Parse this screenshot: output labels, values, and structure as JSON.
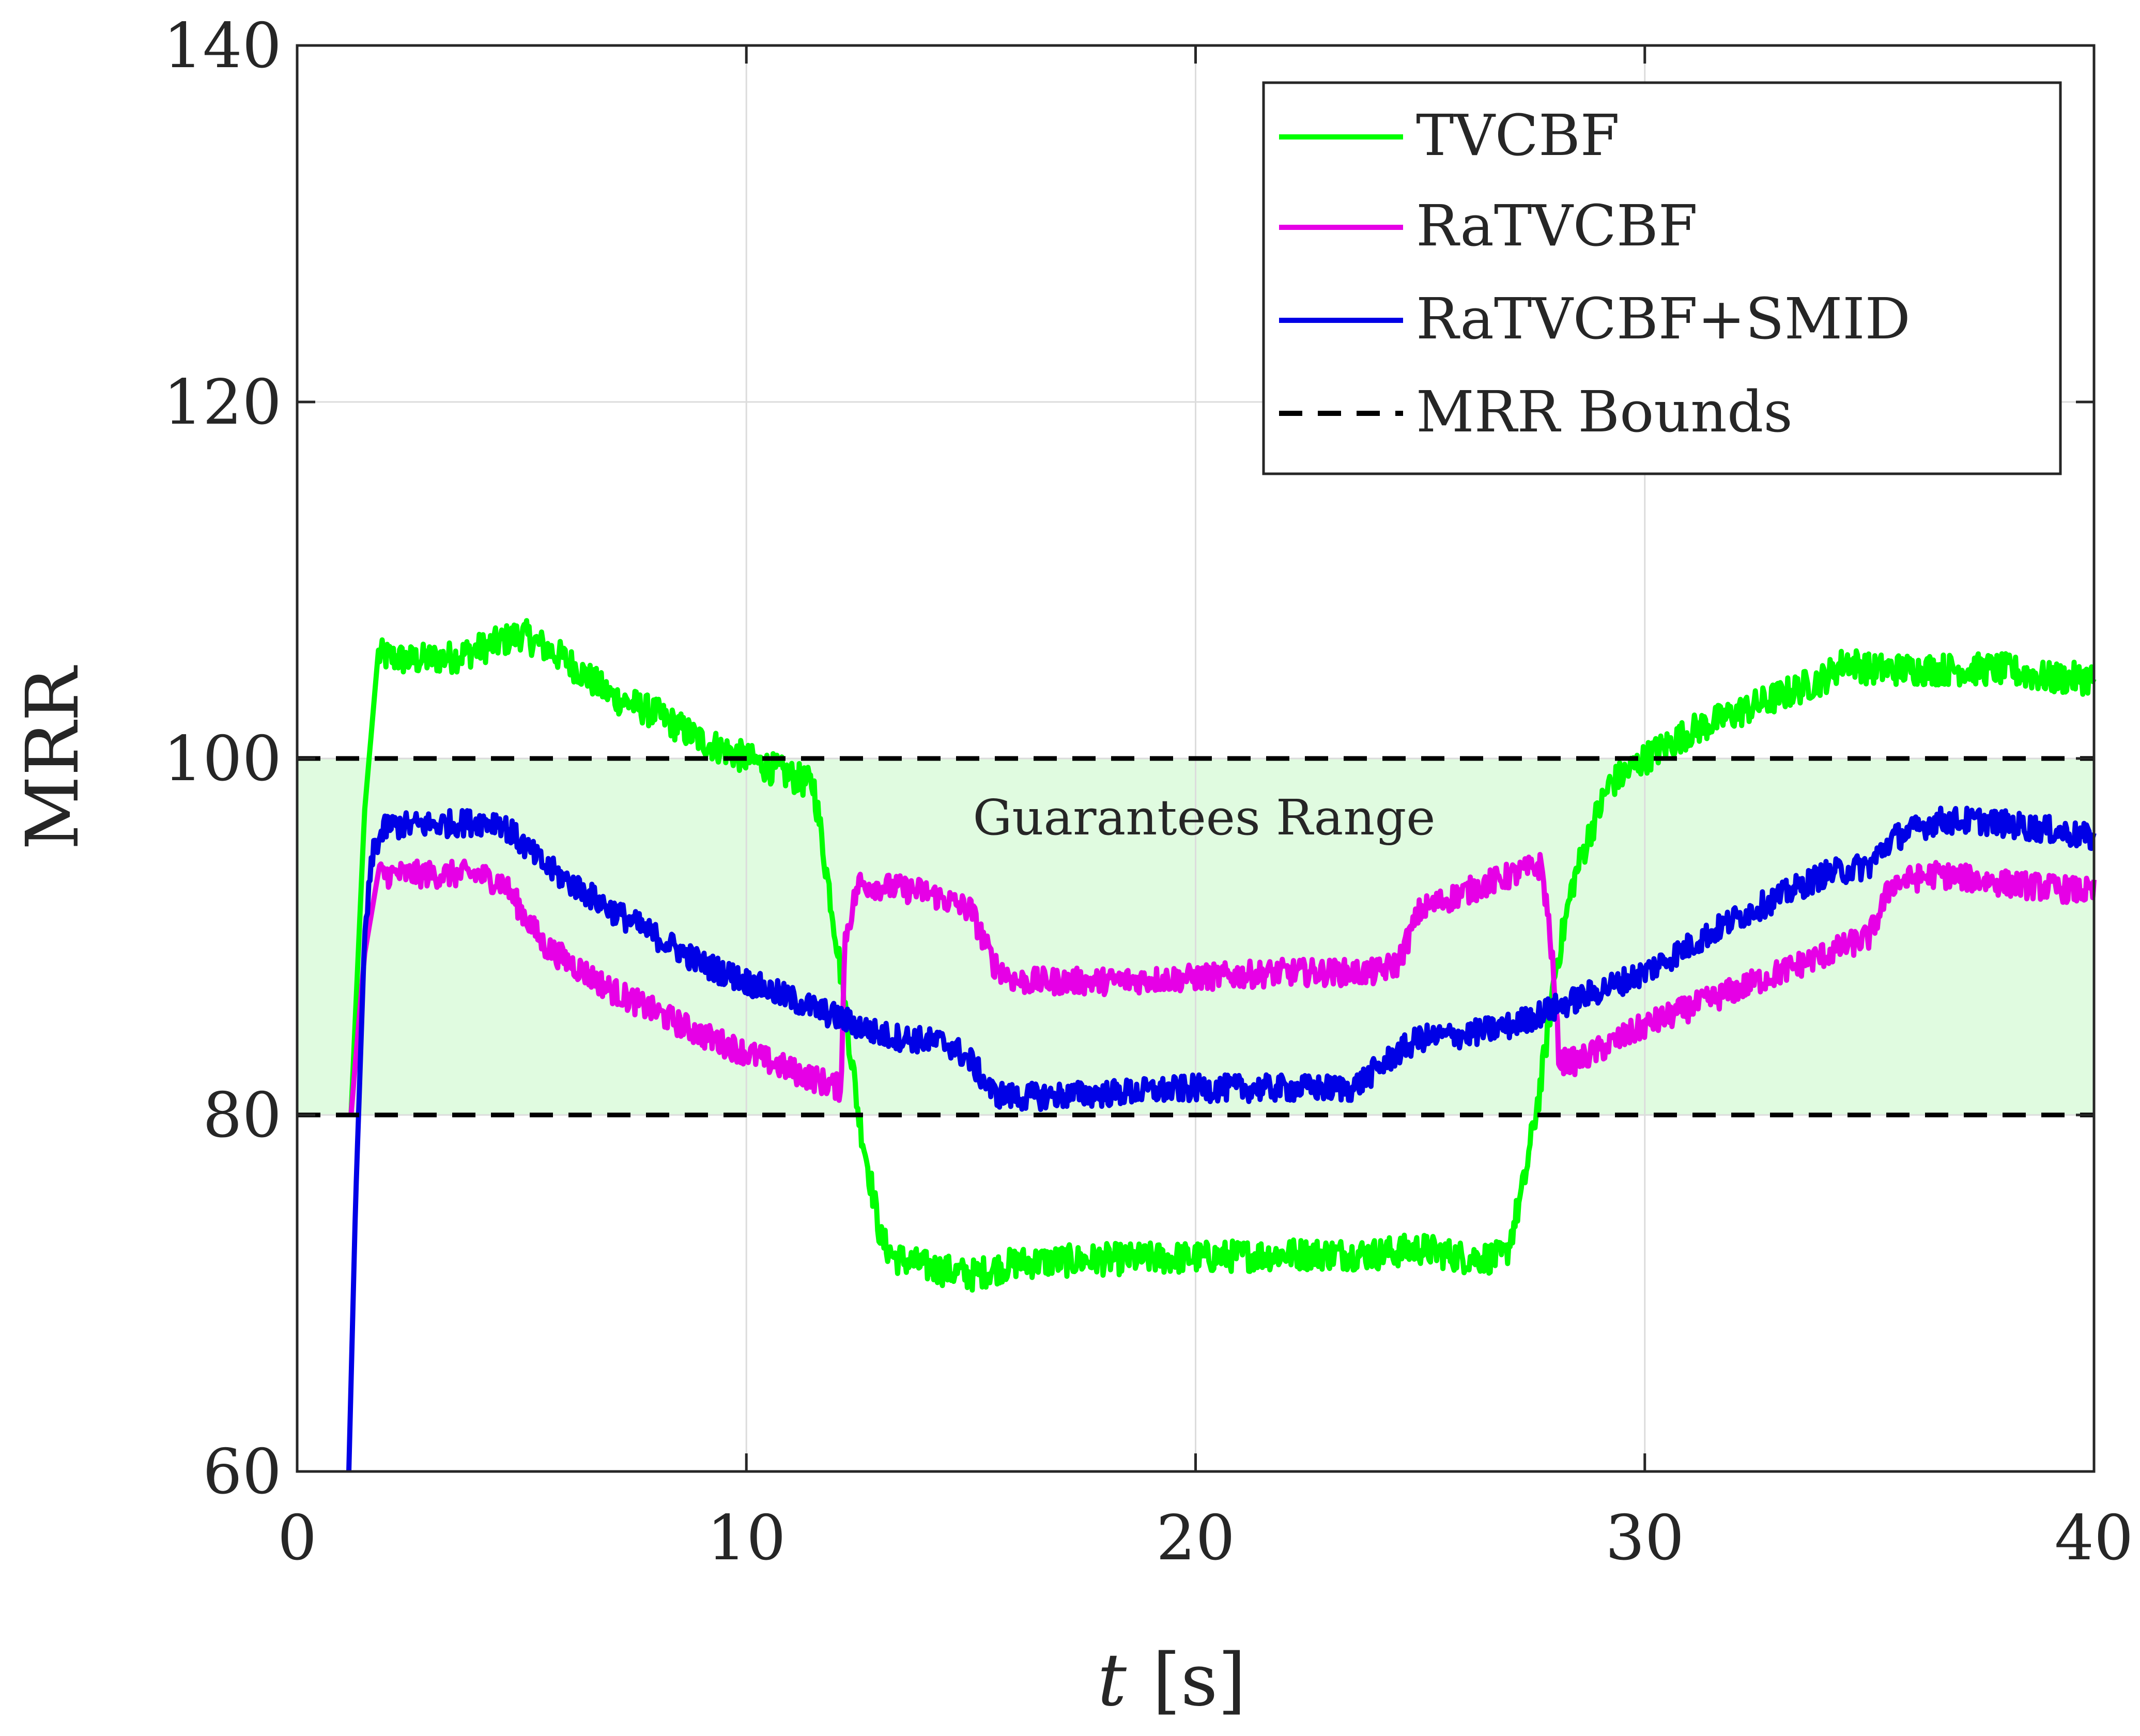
{
  "chart_data": {
    "type": "line",
    "xlabel_var": "t",
    "xlabel_unit": "[s]",
    "ylabel": "MRR",
    "xlim": [
      0,
      40
    ],
    "ylim": [
      60,
      140
    ],
    "xticks": [
      0,
      10,
      20,
      30,
      40
    ],
    "yticks": [
      60,
      80,
      100,
      120,
      140
    ],
    "grid": true,
    "legend_position": "top-right",
    "band": {
      "low": 80,
      "high": 100,
      "label": "Guarantees Range",
      "color": "#e0fbe0"
    },
    "series": [
      {
        "name": "TVCBF",
        "color": "#00ff00",
        "style": "solid",
        "x": [
          1.2,
          1.5,
          1.8,
          2.5,
          3.5,
          4.5,
          5.0,
          6.0,
          7.0,
          8.0,
          9.0,
          10.0,
          11.0,
          11.5,
          12.0,
          12.5,
          13.0,
          13.3,
          14.0,
          15.0,
          16.0,
          18.0,
          20.0,
          22.0,
          24.0,
          25.0,
          26.0,
          26.9,
          27.3,
          27.7,
          28.0,
          28.4,
          28.8,
          29.2,
          30.0,
          31.0,
          32.0,
          33.0,
          34.0,
          34.5,
          35.0,
          36.0,
          37.0,
          38.0,
          39.0,
          40.0
        ],
        "y": [
          80,
          97,
          105.8,
          105.5,
          105.7,
          106.5,
          107,
          105.5,
          103.5,
          102.5,
          101,
          100,
          99,
          98.5,
          90,
          80,
          73,
          72,
          71.5,
          71,
          71.7,
          71.9,
          72,
          72.2,
          72.2,
          72.5,
          72,
          72,
          76,
          82,
          88,
          93,
          96,
          98.5,
          100,
          101.5,
          102.5,
          103.5,
          104.5,
          105.5,
          105,
          105,
          105,
          105,
          104.5,
          104.5
        ]
      },
      {
        "name": "RaTVCBF",
        "color": "#e600e6",
        "style": "solid",
        "x": [
          1.2,
          1.5,
          1.8,
          3.0,
          4.0,
          4.6,
          5.5,
          7.0,
          9.0,
          11.0,
          12.1,
          12.2,
          12.5,
          14.0,
          15.0,
          15.5,
          16.0,
          18.0,
          20.0,
          22.0,
          24.0,
          24.5,
          25.0,
          26.5,
          27.7,
          27.9,
          28.1,
          28.5,
          30.0,
          32.0,
          34.0,
          35.0,
          35.5,
          36.5,
          38.0,
          40.0
        ],
        "y": [
          80,
          89,
          93.5,
          93.5,
          93.5,
          93,
          89.5,
          87,
          84.5,
          82.5,
          81.5,
          90,
          93,
          92.5,
          91.5,
          88.5,
          87.5,
          87.5,
          87.7,
          88,
          88,
          88.5,
          91.5,
          93,
          94,
          90,
          83,
          83,
          85,
          87,
          89,
          90,
          93,
          93.5,
          93,
          92.5
        ]
      },
      {
        "name": "RaTVCBF+SMID",
        "color": "#0000e6",
        "style": "solid",
        "x": [
          1.15,
          1.3,
          1.5,
          1.7,
          2.0,
          3.0,
          4.5,
          5.5,
          7.0,
          9.0,
          11.0,
          12.0,
          13.0,
          14.5,
          15.0,
          15.5,
          16.0,
          18.0,
          20.0,
          22.0,
          23.5,
          24.5,
          25.0,
          26.0,
          27.0,
          28.0,
          30.0,
          32.0,
          34.0,
          35.0,
          35.5,
          36.5,
          37.5,
          39.0,
          40.0
        ],
        "y": [
          60,
          75,
          90,
          95,
          96.2,
          96.3,
          96.5,
          94,
          91.5,
          88.5,
          86.5,
          85.5,
          84.5,
          84,
          83,
          81.2,
          81,
          81.2,
          81.5,
          81.5,
          81.5,
          83.5,
          84.3,
          84.5,
          85,
          86,
          88,
          91,
          93.5,
          94,
          95.5,
          96.5,
          96.5,
          96,
          95.5
        ]
      }
    ],
    "legend": [
      "TVCBF",
      "RaTVCBF",
      "RaTVCBF+SMID",
      "MRR Bounds"
    ],
    "bounds": {
      "name": "MRR Bounds",
      "values": [
        80,
        100
      ],
      "color": "#000000",
      "style": "dashed"
    }
  }
}
